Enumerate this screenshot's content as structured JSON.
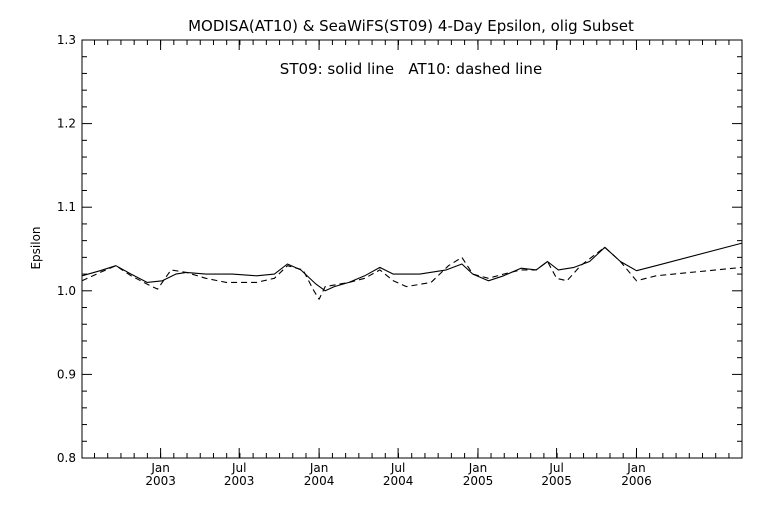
{
  "chart_data": {
    "type": "line",
    "title": "MODISA(AT10) & SeaWiFS(ST09) 4-Day Epsilon, olig Subset",
    "annotation": "ST09: solid line   AT10: dashed line",
    "ylabel": "Epsilon",
    "xlabel": "",
    "ylim": [
      0.8,
      1.3
    ],
    "xlim": [
      "2002-07-04",
      "2006-09-01"
    ],
    "yticks": [
      0.8,
      0.9,
      1.0,
      1.1,
      1.2,
      1.3
    ],
    "ytick_labels": [
      "0.8",
      "0.9",
      "1.0",
      "1.1",
      "1.2",
      "1.3"
    ],
    "xticks": [
      {
        "date": "2003-01-01",
        "month": "Jan",
        "year": "2003"
      },
      {
        "date": "2003-07-01",
        "month": "Jul",
        "year": "2003"
      },
      {
        "date": "2004-01-01",
        "month": "Jan",
        "year": "2004"
      },
      {
        "date": "2004-07-01",
        "month": "Jul",
        "year": "2004"
      },
      {
        "date": "2005-01-01",
        "month": "Jan",
        "year": "2005"
      },
      {
        "date": "2005-07-01",
        "month": "Jul",
        "year": "2005"
      },
      {
        "date": "2006-01-01",
        "month": "Jan",
        "year": "2006"
      }
    ],
    "grid": false,
    "series": [
      {
        "name": "ST09",
        "style": "solid",
        "points": [
          [
            "2002-07-04",
            1.018
          ],
          [
            "2002-08-15",
            1.024
          ],
          [
            "2002-09-20",
            1.03
          ],
          [
            "2002-10-25",
            1.02
          ],
          [
            "2002-12-01",
            1.01
          ],
          [
            "2003-01-05",
            1.012
          ],
          [
            "2003-02-05",
            1.02
          ],
          [
            "2003-03-01",
            1.022
          ],
          [
            "2003-04-15",
            1.02
          ],
          [
            "2003-06-15",
            1.02
          ],
          [
            "2003-08-10",
            1.018
          ],
          [
            "2003-09-20",
            1.02
          ],
          [
            "2003-10-20",
            1.032
          ],
          [
            "2003-11-20",
            1.025
          ],
          [
            "2003-12-25",
            1.008
          ],
          [
            "2004-01-15",
            1.0
          ],
          [
            "2004-02-05",
            1.005
          ],
          [
            "2004-03-10",
            1.01
          ],
          [
            "2004-04-15",
            1.018
          ],
          [
            "2004-05-20",
            1.028
          ],
          [
            "2004-06-20",
            1.02
          ],
          [
            "2004-08-20",
            1.02
          ],
          [
            "2004-10-20",
            1.025
          ],
          [
            "2004-11-25",
            1.032
          ],
          [
            "2004-12-20",
            1.02
          ],
          [
            "2005-01-25",
            1.012
          ],
          [
            "2005-03-01",
            1.018
          ],
          [
            "2005-04-10",
            1.027
          ],
          [
            "2005-05-15",
            1.025
          ],
          [
            "2005-06-10",
            1.035
          ],
          [
            "2005-07-05",
            1.025
          ],
          [
            "2005-08-10",
            1.028
          ],
          [
            "2005-09-15",
            1.035
          ],
          [
            "2005-10-20",
            1.052
          ],
          [
            "2005-11-25",
            1.035
          ],
          [
            "2006-01-01",
            1.024
          ],
          [
            "2006-02-15",
            1.03
          ],
          [
            "2006-09-01",
            1.057
          ]
        ]
      },
      {
        "name": "AT10",
        "style": "dashed",
        "points": [
          [
            "2002-07-04",
            1.012
          ],
          [
            "2002-08-15",
            1.022
          ],
          [
            "2002-09-20",
            1.03
          ],
          [
            "2002-10-25",
            1.018
          ],
          [
            "2002-12-01",
            1.008
          ],
          [
            "2002-12-25",
            1.002
          ],
          [
            "2003-01-25",
            1.025
          ],
          [
            "2003-03-01",
            1.022
          ],
          [
            "2003-04-15",
            1.015
          ],
          [
            "2003-06-01",
            1.01
          ],
          [
            "2003-08-10",
            1.01
          ],
          [
            "2003-09-20",
            1.015
          ],
          [
            "2003-10-20",
            1.03
          ],
          [
            "2003-11-25",
            1.025
          ],
          [
            "2003-12-20",
            1.0
          ],
          [
            "2004-01-01",
            0.99
          ],
          [
            "2004-01-15",
            1.005
          ],
          [
            "2004-03-10",
            1.01
          ],
          [
            "2004-04-15",
            1.015
          ],
          [
            "2004-05-20",
            1.025
          ],
          [
            "2004-06-20",
            1.012
          ],
          [
            "2004-07-20",
            1.005
          ],
          [
            "2004-09-15",
            1.01
          ],
          [
            "2004-10-25",
            1.03
          ],
          [
            "2004-11-25",
            1.04
          ],
          [
            "2004-12-20",
            1.02
          ],
          [
            "2005-01-25",
            1.015
          ],
          [
            "2005-03-01",
            1.02
          ],
          [
            "2005-04-10",
            1.025
          ],
          [
            "2005-05-15",
            1.025
          ],
          [
            "2005-06-10",
            1.035
          ],
          [
            "2005-07-01",
            1.015
          ],
          [
            "2005-07-25",
            1.012
          ],
          [
            "2005-08-25",
            1.03
          ],
          [
            "2005-10-20",
            1.052
          ],
          [
            "2005-11-25",
            1.035
          ],
          [
            "2006-01-01",
            1.012
          ],
          [
            "2006-02-15",
            1.018
          ],
          [
            "2006-09-01",
            1.028
          ]
        ]
      }
    ]
  }
}
